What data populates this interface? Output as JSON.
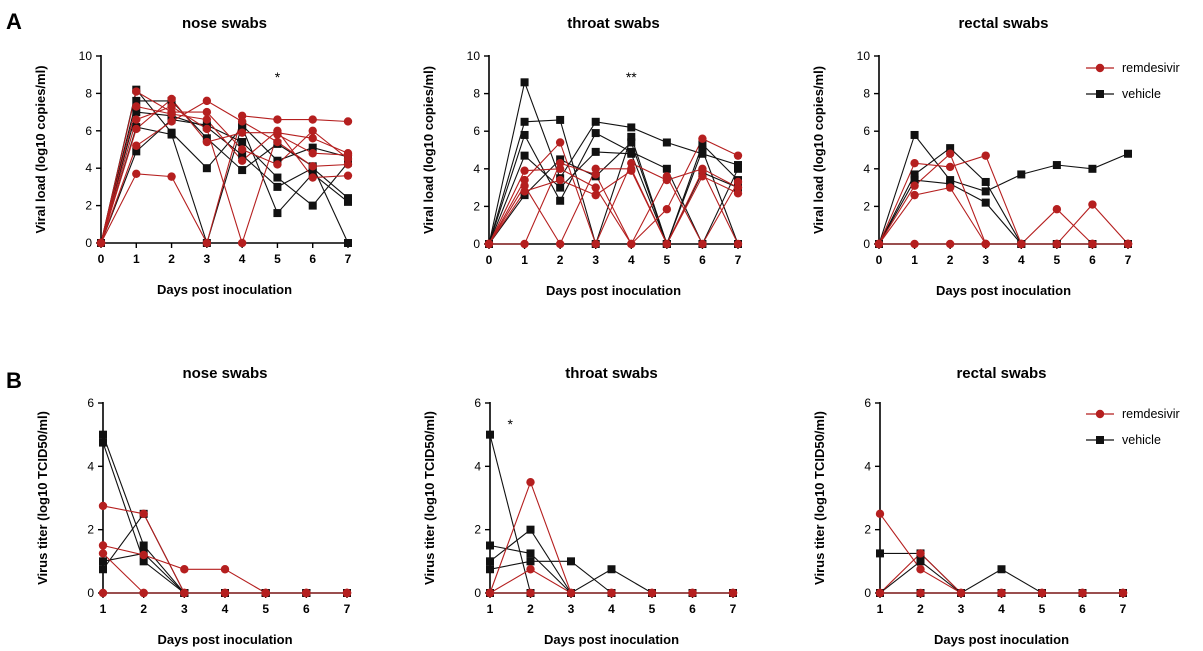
{
  "figure": {
    "panel_letters": [
      "A",
      "B"
    ],
    "legend": {
      "entries": [
        {
          "name": "remdesivir",
          "color": "#b51f1f",
          "marker": "circle"
        },
        {
          "name": "vehicle",
          "color": "#111111",
          "marker": "square"
        }
      ]
    }
  },
  "chart_data": [
    {
      "type": "line",
      "panel": "A",
      "title": "nose swabs",
      "xlabel": "Days post inoculation",
      "ylabel": "Viral load (log10 copies/ml)",
      "x": [
        0,
        1,
        2,
        3,
        4,
        5,
        6,
        7
      ],
      "xlim": [
        0,
        7
      ],
      "ylim": [
        0,
        10
      ],
      "yticks": [
        0,
        2,
        4,
        6,
        8,
        10
      ],
      "annotations": [
        {
          "x": 5,
          "text": "*"
        }
      ],
      "series": [
        {
          "group": "remdesivir",
          "values": [
            0,
            3.7,
            3.55,
            0,
            6.8,
            6.6,
            6.6,
            6.5
          ]
        },
        {
          "group": "remdesivir",
          "values": [
            0,
            5.2,
            6.5,
            7.6,
            6.5,
            5.4,
            4.1,
            4.2
          ]
        },
        {
          "group": "remdesivir",
          "values": [
            0,
            6.1,
            7.7,
            5.4,
            5.9,
            5.9,
            5.6,
            4.8
          ]
        },
        {
          "group": "remdesivir",
          "values": [
            0,
            6.6,
            7.3,
            6.1,
            0,
            5.8,
            4.8,
            4.7
          ]
        },
        {
          "group": "remdesivir",
          "values": [
            0,
            7.3,
            6.9,
            6.6,
            4.4,
            6.0,
            3.5,
            3.6
          ]
        },
        {
          "group": "remdesivir",
          "values": [
            0,
            8.1,
            7.0,
            7.0,
            5.0,
            4.2,
            6.0,
            4.5
          ]
        },
        {
          "group": "vehicle",
          "values": [
            0,
            8.2,
            5.9,
            4.0,
            6.2,
            1.6,
            3.7,
            2.2
          ]
        },
        {
          "group": "vehicle",
          "values": [
            0,
            7.6,
            7.6,
            5.6,
            3.9,
            5.3,
            4.1,
            0
          ]
        },
        {
          "group": "vehicle",
          "values": [
            0,
            6.2,
            5.8,
            0,
            6.3,
            4.4,
            5.1,
            4.6
          ]
        },
        {
          "group": "vehicle",
          "values": [
            0,
            4.9,
            6.6,
            6.3,
            5.4,
            3.5,
            2.0,
            4.3
          ]
        },
        {
          "group": "vehicle",
          "values": [
            0,
            7.0,
            6.8,
            6.2,
            4.7,
            3.0,
            4.0,
            2.4
          ]
        }
      ]
    },
    {
      "type": "line",
      "panel": "A",
      "title": "throat swabs",
      "xlabel": "Days post inoculation",
      "ylabel": "Viral load (log10 copies/ml)",
      "x": [
        0,
        1,
        2,
        3,
        4,
        5,
        6,
        7
      ],
      "xlim": [
        0,
        7
      ],
      "ylim": [
        0,
        10
      ],
      "yticks": [
        0,
        2,
        4,
        6,
        8,
        10
      ],
      "annotations": [
        {
          "x": 4,
          "text": "**"
        }
      ],
      "series": [
        {
          "group": "remdesivir",
          "values": [
            0,
            3.9,
            4.0,
            3.0,
            0,
            1.85,
            5.6,
            4.7
          ]
        },
        {
          "group": "remdesivir",
          "values": [
            0,
            3.4,
            5.4,
            0,
            4.3,
            3.4,
            4.0,
            3.0
          ]
        },
        {
          "group": "remdesivir",
          "values": [
            0,
            2.8,
            3.4,
            2.6,
            3.9,
            0,
            3.6,
            2.7
          ]
        },
        {
          "group": "remdesivir",
          "values": [
            0,
            0,
            4.3,
            3.7,
            0,
            3.6,
            0,
            3.3
          ]
        },
        {
          "group": "remdesivir",
          "values": [
            0,
            3.1,
            0,
            4.0,
            4.0,
            0,
            3.9,
            0
          ]
        },
        {
          "group": "vehicle",
          "values": [
            0,
            8.6,
            3.5,
            6.5,
            6.2,
            5.4,
            4.8,
            4.2
          ]
        },
        {
          "group": "vehicle",
          "values": [
            0,
            6.5,
            6.6,
            0,
            5.7,
            0,
            5.3,
            3.4
          ]
        },
        {
          "group": "vehicle",
          "values": [
            0,
            5.8,
            2.3,
            5.9,
            4.9,
            4.0,
            0,
            4.0
          ]
        },
        {
          "group": "vehicle",
          "values": [
            0,
            4.7,
            3.0,
            4.9,
            4.8,
            0,
            3.8,
            3.0
          ]
        },
        {
          "group": "vehicle",
          "values": [
            0,
            2.6,
            4.5,
            3.6,
            5.4,
            0,
            5.0,
            0
          ]
        }
      ]
    },
    {
      "type": "line",
      "panel": "A",
      "title": "rectal swabs",
      "xlabel": "Days post inoculation",
      "ylabel": "Viral load (log10 copies/ml)",
      "x": [
        0,
        1,
        2,
        3,
        4,
        5,
        6,
        7
      ],
      "xlim": [
        0,
        7
      ],
      "ylim": [
        0,
        10
      ],
      "yticks": [
        0,
        2,
        4,
        6,
        8,
        10
      ],
      "series": [
        {
          "group": "remdesivir",
          "values": [
            0,
            4.3,
            4.1,
            4.7,
            0,
            1.85,
            0,
            0
          ]
        },
        {
          "group": "remdesivir",
          "values": [
            0,
            3.1,
            4.8,
            0,
            0,
            0,
            2.1,
            0
          ]
        },
        {
          "group": "remdesivir",
          "values": [
            0,
            2.6,
            3.0,
            0,
            0,
            0,
            0,
            0
          ]
        },
        {
          "group": "remdesivir",
          "values": [
            0,
            0,
            0,
            0,
            0,
            0,
            0,
            0
          ]
        },
        {
          "group": "vehicle",
          "values": [
            0,
            5.8,
            3.4,
            2.8,
            3.7,
            4.2,
            4.0,
            4.8
          ]
        },
        {
          "group": "vehicle",
          "values": [
            0,
            3.7,
            5.1,
            3.3,
            0,
            0,
            0,
            0
          ]
        },
        {
          "group": "vehicle",
          "values": [
            0,
            3.4,
            3.2,
            2.2,
            0,
            0,
            0,
            0
          ]
        }
      ]
    },
    {
      "type": "line",
      "panel": "B",
      "title": "nose swabs",
      "xlabel": "Days post inoculation",
      "ylabel": "Virus titer (log10 TCID50/ml)",
      "x": [
        1,
        2,
        3,
        4,
        5,
        6,
        7
      ],
      "xlim": [
        1,
        7
      ],
      "ylim": [
        0,
        6
      ],
      "yticks": [
        0,
        2,
        4,
        6
      ],
      "series": [
        {
          "group": "remdesivir",
          "values": [
            2.75,
            2.5,
            0,
            0,
            0,
            0,
            0
          ]
        },
        {
          "group": "remdesivir",
          "values": [
            1.5,
            1.2,
            0.75,
            0.75,
            0,
            0,
            0
          ]
        },
        {
          "group": "remdesivir",
          "values": [
            1.25,
            0,
            0,
            0,
            0,
            0,
            0
          ]
        },
        {
          "group": "remdesivir",
          "values": [
            0,
            0,
            0,
            0,
            0,
            0,
            0
          ]
        },
        {
          "group": "vehicle",
          "values": [
            5.0,
            1.5,
            0,
            0,
            0,
            0,
            0
          ]
        },
        {
          "group": "vehicle",
          "values": [
            4.75,
            1.0,
            0,
            0,
            0,
            0,
            0
          ]
        },
        {
          "group": "vehicle",
          "values": [
            1.0,
            1.25,
            0,
            0,
            0,
            0,
            0
          ]
        },
        {
          "group": "vehicle",
          "values": [
            0.75,
            2.5,
            0,
            0,
            0,
            0,
            0
          ]
        }
      ]
    },
    {
      "type": "line",
      "panel": "B",
      "title": "throat swabs",
      "xlabel": "Days post inoculation",
      "ylabel": "Virus titer (log10 TCID50/ml)",
      "x": [
        1,
        2,
        3,
        4,
        5,
        6,
        7
      ],
      "xlim": [
        1,
        7
      ],
      "ylim": [
        0,
        6
      ],
      "yticks": [
        0,
        2,
        4,
        6
      ],
      "annotations": [
        {
          "x": 1.5,
          "text": "*"
        }
      ],
      "series": [
        {
          "group": "remdesivir",
          "values": [
            0,
            3.5,
            0,
            0,
            0,
            0,
            0
          ]
        },
        {
          "group": "remdesivir",
          "values": [
            0,
            0.75,
            0,
            0,
            0,
            0,
            0
          ]
        },
        {
          "group": "remdesivir",
          "values": [
            0,
            0,
            0,
            0,
            0,
            0,
            0
          ]
        },
        {
          "group": "vehicle",
          "values": [
            5.0,
            0,
            0,
            0,
            0,
            0,
            0
          ]
        },
        {
          "group": "vehicle",
          "values": [
            1.5,
            1.25,
            0,
            0,
            0,
            0,
            0
          ]
        },
        {
          "group": "vehicle",
          "values": [
            1.0,
            2.0,
            0,
            0,
            0,
            0,
            0
          ]
        },
        {
          "group": "vehicle",
          "values": [
            0.75,
            1.0,
            1.0,
            0,
            0,
            0,
            0
          ]
        },
        {
          "group": "vehicle",
          "values": [
            0,
            0,
            0,
            0.75,
            0,
            0,
            0
          ]
        }
      ]
    },
    {
      "type": "line",
      "panel": "B",
      "title": "rectal swabs",
      "xlabel": "Days post inoculation",
      "ylabel": "Virus titer (log10 TCID50/ml)",
      "x": [
        1,
        2,
        3,
        4,
        5,
        6,
        7
      ],
      "xlim": [
        1,
        7
      ],
      "ylim": [
        0,
        6
      ],
      "yticks": [
        0,
        2,
        4,
        6
      ],
      "series": [
        {
          "group": "remdesivir",
          "values": [
            2.5,
            0.75,
            0,
            0,
            0,
            0,
            0
          ]
        },
        {
          "group": "remdesivir",
          "values": [
            0,
            1.25,
            0,
            0,
            0,
            0,
            0
          ]
        },
        {
          "group": "remdesivir",
          "values": [
            0,
            0,
            0,
            0,
            0,
            0,
            0
          ]
        },
        {
          "group": "vehicle",
          "values": [
            1.25,
            1.25,
            0,
            0,
            0,
            0,
            0
          ]
        },
        {
          "group": "vehicle",
          "values": [
            0,
            1.0,
            0,
            0.75,
            0,
            0,
            0
          ]
        },
        {
          "group": "vehicle",
          "values": [
            0,
            0,
            0,
            0,
            0,
            0,
            0
          ]
        }
      ]
    }
  ]
}
